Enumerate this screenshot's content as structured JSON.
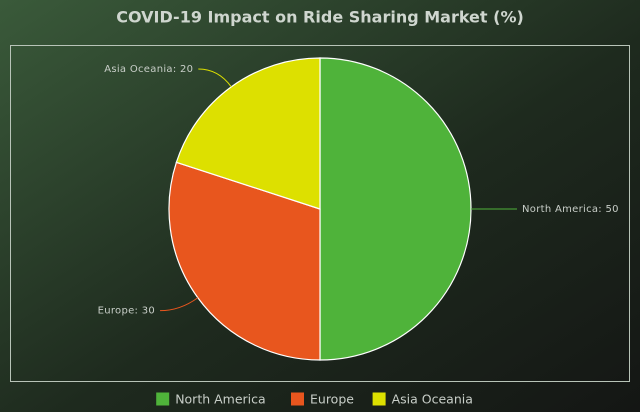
{
  "chart_data": {
    "type": "pie",
    "title": "COVID-19 Impact on Ride Sharing Market (%)",
    "categories": [
      "North America",
      "Europe",
      "Asia Oceania"
    ],
    "values": [
      50,
      30,
      20
    ],
    "value_labels": [
      "North America: 50",
      "Europe: 30",
      "Asia Oceania: 20"
    ],
    "colors": [
      "#4fb33a",
      "#e8561e",
      "#dde000"
    ],
    "legend": "bottom"
  }
}
